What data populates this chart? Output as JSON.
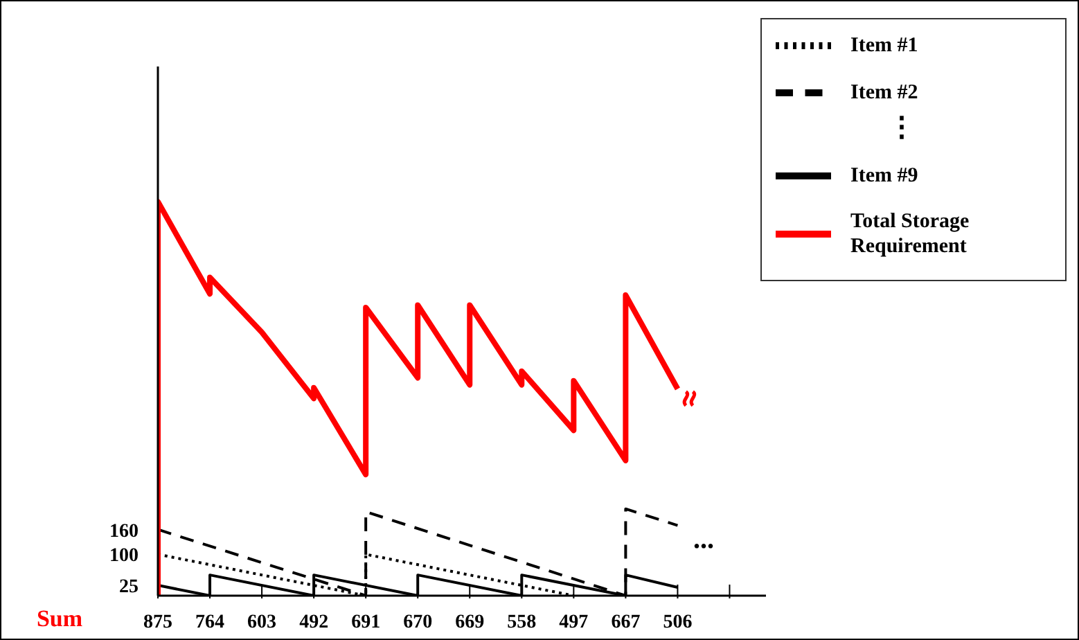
{
  "chart_data": {
    "type": "line",
    "xlabel": "Sum",
    "categories": [
      "875",
      "764",
      "603",
      "492",
      "691",
      "670",
      "669",
      "558",
      "497",
      "667",
      "506",
      null
    ],
    "ylim": [
      0,
      1280
    ],
    "yticks": [
      25,
      100,
      160
    ],
    "grid": false,
    "legend": "top right",
    "marker": "none",
    "series": [
      {
        "name": "Item #1",
        "color": "#000000",
        "line_style": "dotted",
        "x": [
          "875",
          "691",
          "691",
          "497"
        ],
        "values": [
          100,
          0,
          100,
          0
        ]
      },
      {
        "name": "Item #2",
        "color": "#000000",
        "line_style": "dashed",
        "x": [
          "875",
          "691",
          "691",
          "667",
          "667",
          "506"
        ],
        "values": [
          160,
          0,
          203,
          0,
          210,
          170
        ]
      },
      {
        "name": "Item #9",
        "color": "#000000",
        "line_style": "solid",
        "x": [
          "875",
          "764",
          "764",
          "492",
          "492",
          "670",
          "670",
          "558",
          "558",
          "667",
          "667",
          "506"
        ],
        "values": [
          25,
          0,
          50,
          0,
          50,
          0,
          50,
          0,
          50,
          0,
          50,
          20
        ]
      },
      {
        "name": "Total Storage Requirement",
        "color": "#ff0000",
        "line_style": "solid",
        "x": [
          "875",
          "875",
          "764",
          "764",
          "603",
          "492",
          "492",
          "691",
          "691",
          "670",
          "670",
          "669",
          "669",
          "558",
          "558",
          "497",
          "497",
          "667",
          "667",
          "506"
        ],
        "values": [
          0,
          953,
          730,
          770,
          637,
          477,
          503,
          293,
          697,
          527,
          703,
          510,
          703,
          510,
          543,
          400,
          520,
          327,
          727,
          500
        ]
      }
    ],
    "annotations": [
      "⋮",
      "..."
    ]
  }
}
